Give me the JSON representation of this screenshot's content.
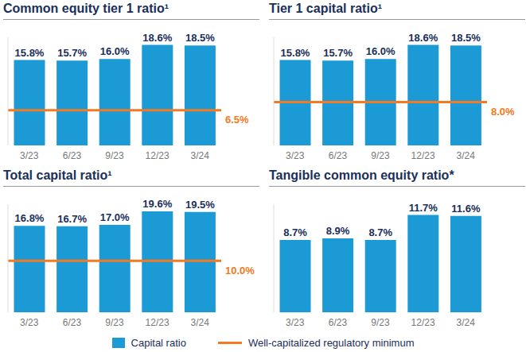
{
  "chart_data": [
    {
      "type": "bar",
      "title": "Common equity tier 1 ratio¹",
      "categories": [
        "3/23",
        "6/23",
        "9/23",
        "12/23",
        "3/24"
      ],
      "series": [
        {
          "name": "Capital ratio",
          "color": "#1b9ad6",
          "values": [
            15.8,
            15.7,
            16.0,
            18.6,
            18.5
          ],
          "value_labels": [
            "15.8%",
            "15.7%",
            "16.0%",
            "18.6%",
            "18.5%"
          ]
        }
      ],
      "annotations": [
        {
          "name": "Well-capitalized regulatory minimum",
          "value": 6.5,
          "label": "6.5%",
          "color": "#f47920"
        }
      ],
      "ylim": [
        0,
        20
      ],
      "yticks": [
        0,
        20
      ],
      "data_labels": true,
      "tick_labels": "x"
    },
    {
      "type": "bar",
      "title": "Tier 1 capital ratio¹",
      "categories": [
        "3/23",
        "6/23",
        "9/23",
        "12/23",
        "3/24"
      ],
      "series": [
        {
          "name": "Capital ratio",
          "color": "#1b9ad6",
          "values": [
            15.8,
            15.7,
            16.0,
            18.6,
            18.5
          ],
          "value_labels": [
            "15.8%",
            "15.7%",
            "16.0%",
            "18.6%",
            "18.5%"
          ]
        }
      ],
      "annotations": [
        {
          "name": "Well-capitalized regulatory minimum",
          "value": 8.0,
          "label": "8.0%",
          "color": "#f47920"
        }
      ],
      "ylim": [
        0,
        20
      ],
      "yticks": [
        0,
        20
      ],
      "data_labels": true,
      "tick_labels": "x"
    },
    {
      "type": "bar",
      "title": "Total capital ratio¹",
      "categories": [
        "3/23",
        "6/23",
        "9/23",
        "12/23",
        "3/24"
      ],
      "series": [
        {
          "name": "Capital ratio",
          "color": "#1b9ad6",
          "values": [
            16.8,
            16.7,
            17.0,
            19.6,
            19.5
          ],
          "value_labels": [
            "16.8%",
            "16.7%",
            "17.0%",
            "19.6%",
            "19.5%"
          ]
        }
      ],
      "annotations": [
        {
          "name": "Well-capitalized regulatory minimum",
          "value": 10.0,
          "label": "10.0%",
          "color": "#f47920"
        }
      ],
      "ylim": [
        0,
        21
      ],
      "yticks": [
        0,
        21
      ],
      "data_labels": true,
      "tick_labels": "x"
    },
    {
      "type": "bar",
      "title": "Tangible common equity ratio*",
      "categories": [
        "3/23",
        "6/23",
        "9/23",
        "12/23",
        "3/24"
      ],
      "series": [
        {
          "name": "Capital ratio",
          "color": "#1b9ad6",
          "values": [
            8.7,
            8.9,
            8.7,
            11.7,
            11.6
          ],
          "value_labels": [
            "8.7%",
            "8.9%",
            "8.7%",
            "11.7%",
            "11.6%"
          ]
        }
      ],
      "ylim": [
        0,
        13
      ],
      "yticks": [
        0,
        13
      ],
      "data_labels": true,
      "tick_labels": "x"
    }
  ]
}
